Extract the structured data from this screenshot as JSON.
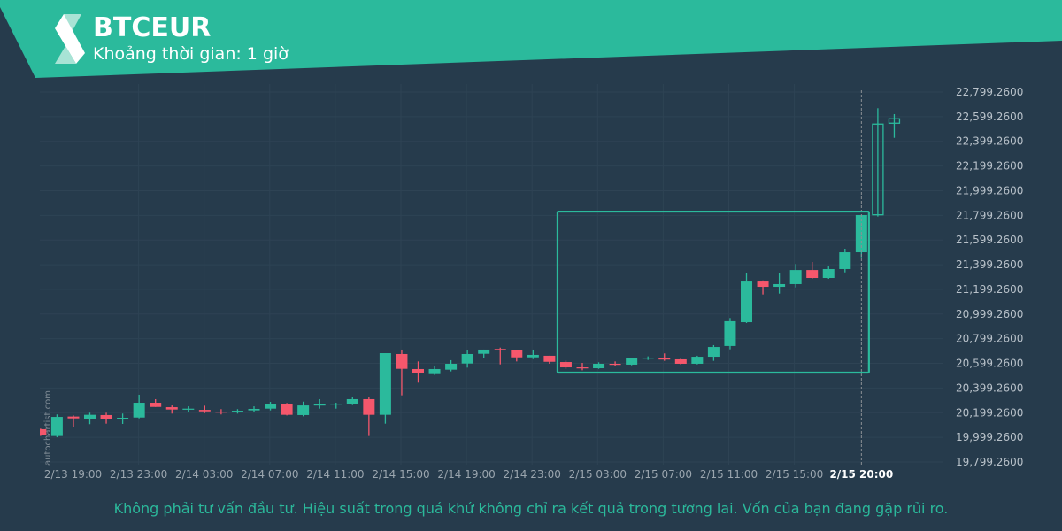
{
  "header": {
    "symbol": "BTCEUR",
    "interval": "Khoảng thời gian: 1 giờ",
    "logo": "autochartist-logo"
  },
  "watermark": "autochartist.com",
  "footer": {
    "disclaimer": "Không phải tư vấn đầu tư. Hiệu suất trong quá khứ không chỉ ra kết quả trong tương lai. Vốn của bạn đang gặp rủi ro."
  },
  "colors": {
    "background": "#263b4c",
    "accent": "#2bba9c",
    "up": "#2bba9c",
    "down": "#f5576c",
    "grid": "#2e4354"
  },
  "chart_data": {
    "type": "candlestick",
    "title": "BTCEUR",
    "ylim": [
      19799.26,
      22799.26
    ],
    "grid": true,
    "y_ticks": [
      "22,799.2600",
      "22,599.2600",
      "22,399.2600",
      "22,199.2600",
      "21,999.2600",
      "21,799.2600",
      "21,599.2600",
      "21,399.2600",
      "21,199.2600",
      "20,999.2600",
      "20,799.2600",
      "20,599.2600",
      "20,399.2600",
      "20,199.2600",
      "19,999.2600",
      "19,799.2600"
    ],
    "x_ticks": [
      "2/13 19:00",
      "2/13 23:00",
      "2/14 03:00",
      "2/14 07:00",
      "2/14 11:00",
      "2/14 15:00",
      "2/14 19:00",
      "2/14 23:00",
      "2/15 03:00",
      "2/15 07:00",
      "2/15 11:00",
      "2/15 15:00"
    ],
    "current_time_label": "2/15 20:00",
    "columns": [
      "open",
      "high",
      "low",
      "close"
    ],
    "partial_first_candle": [
      20065,
      20070,
      20010,
      20017
    ],
    "candles": [
      [
        20010,
        20185,
        20000,
        20165
      ],
      [
        20168,
        20177,
        20081,
        20153
      ],
      [
        20151,
        20199,
        20106,
        20182
      ],
      [
        20180,
        20199,
        20110,
        20146
      ],
      [
        20146,
        20192,
        20108,
        20158
      ],
      [
        20160,
        20345,
        20153,
        20280
      ],
      [
        20280,
        20309,
        20246,
        20246
      ],
      [
        20244,
        20258,
        20192,
        20225
      ],
      [
        20225,
        20251,
        20203,
        20232
      ],
      [
        20222,
        20256,
        20196,
        20210
      ],
      [
        20208,
        20228,
        20185,
        20203
      ],
      [
        20203,
        20228,
        20192,
        20215
      ],
      [
        20218,
        20251,
        20206,
        20230
      ],
      [
        20232,
        20287,
        20218,
        20273
      ],
      [
        20273,
        20278,
        20177,
        20182
      ],
      [
        20180,
        20289,
        20170,
        20258
      ],
      [
        20261,
        20309,
        20232,
        20266
      ],
      [
        20268,
        20280,
        20232,
        20273
      ],
      [
        20268,
        20323,
        20261,
        20309
      ],
      [
        20309,
        20323,
        20010,
        20182
      ],
      [
        20182,
        20682,
        20110,
        20682
      ],
      [
        20675,
        20711,
        20340,
        20555
      ],
      [
        20553,
        20615,
        20443,
        20519
      ],
      [
        20512,
        20580,
        20505,
        20553
      ],
      [
        20548,
        20625,
        20534,
        20596
      ],
      [
        20598,
        20704,
        20565,
        20675
      ],
      [
        20677,
        20711,
        20644,
        20711
      ],
      [
        20716,
        20727,
        20591,
        20709
      ],
      [
        20704,
        20704,
        20615,
        20648
      ],
      [
        20648,
        20711,
        20634,
        20668
      ],
      [
        20661,
        20661,
        20596,
        20612
      ],
      [
        20610,
        20622,
        20555,
        20567
      ],
      [
        20567,
        20603,
        20543,
        20562
      ],
      [
        20560,
        20608,
        20555,
        20596
      ],
      [
        20596,
        20615,
        20580,
        20591
      ],
      [
        20589,
        20639,
        20584,
        20639
      ],
      [
        20641,
        20656,
        20627,
        20646
      ],
      [
        20639,
        20680,
        20620,
        20634
      ],
      [
        20632,
        20646,
        20589,
        20596
      ],
      [
        20596,
        20661,
        20591,
        20653
      ],
      [
        20653,
        20747,
        20620,
        20732
      ],
      [
        20740,
        20967,
        20713,
        20941
      ],
      [
        20933,
        21328,
        20926,
        21263
      ],
      [
        21263,
        21272,
        21158,
        21220
      ],
      [
        21220,
        21328,
        21165,
        21242
      ],
      [
        21242,
        21405,
        21215,
        21356
      ],
      [
        21356,
        21421,
        21285,
        21292
      ],
      [
        21292,
        21385,
        21285,
        21364
      ],
      [
        21364,
        21529,
        21337,
        21500
      ],
      [
        21500,
        21802,
        21459,
        21802
      ],
      [
        21804,
        22668,
        21790,
        22539
      ],
      [
        22546,
        22620,
        22428,
        22582
      ]
    ],
    "hollow_from_index": 50,
    "current_candle_index": 49,
    "pattern_box": {
      "from_candle": 31,
      "to_candle": 49,
      "high": 21830,
      "low": 20524
    }
  }
}
